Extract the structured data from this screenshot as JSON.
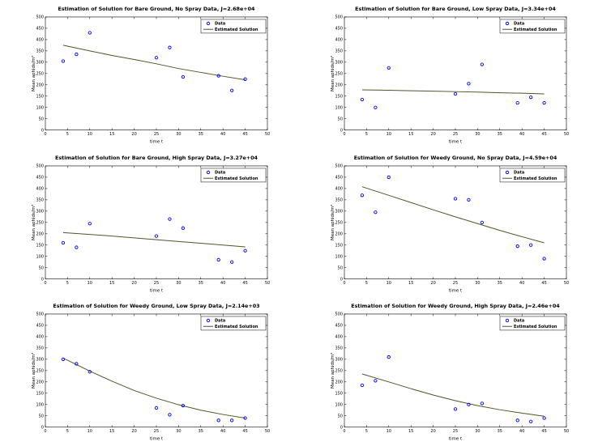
{
  "figure": {
    "background": "#ffffff"
  },
  "axes": {
    "xlabel": "time t",
    "ylabel": "Mean aphids/m³",
    "xlim": [
      0,
      50
    ],
    "ylim": [
      0,
      500
    ],
    "xticks": [
      0,
      5,
      10,
      15,
      20,
      25,
      30,
      35,
      40,
      45,
      50
    ],
    "yticks": [
      0,
      50,
      100,
      150,
      200,
      250,
      300,
      350,
      400,
      450,
      500
    ],
    "grid": false,
    "box": true,
    "legend": {
      "position": "upper-right",
      "entries": [
        {
          "label": "Data",
          "marker": "circle"
        },
        {
          "label": "Estimated Solution",
          "marker": "line"
        }
      ]
    }
  },
  "style": {
    "marker_color": "#0000ff",
    "line_color": "#4d5726",
    "axis_color": "#000000",
    "title_color": "#000000",
    "legend_bg": "#ffffff"
  },
  "chart_data": [
    {
      "type": "scatter",
      "title": "Estimation of Solution for Bare Ground, No Spray Data, J=2.68e+04",
      "ground": "Bare Ground",
      "spray": "No Spray",
      "J": "2.68e+04",
      "xlabel": "time t",
      "ylabel": "Mean aphids/m³",
      "points": {
        "x": [
          4,
          7,
          10,
          25,
          28,
          31,
          39,
          42,
          45
        ],
        "y": [
          305,
          335,
          430,
          320,
          365,
          235,
          240,
          175,
          225
        ]
      },
      "estimated_solution": {
        "x": [
          4,
          10,
          15,
          20,
          25,
          30,
          35,
          40,
          45
        ],
        "y": [
          375,
          350,
          330,
          312,
          293,
          272,
          255,
          238,
          222
        ]
      }
    },
    {
      "type": "scatter",
      "title": "Estimation of Solution for Bare Ground, Low Spray Data, J=3.34e+04",
      "ground": "Bare Ground",
      "spray": "Low Spray",
      "J": "3.34e+04",
      "xlabel": "time t",
      "ylabel": "Mean aphids/m³",
      "points": {
        "x": [
          4,
          7,
          10,
          25,
          28,
          31,
          39,
          42,
          45
        ],
        "y": [
          135,
          100,
          275,
          160,
          205,
          290,
          120,
          145,
          120
        ]
      },
      "estimated_solution": {
        "x": [
          4,
          10,
          15,
          20,
          25,
          30,
          35,
          40,
          45
        ],
        "y": [
          178,
          176,
          174,
          172,
          170,
          168,
          165,
          163,
          160
        ]
      }
    },
    {
      "type": "scatter",
      "title": "Estimation of Solution for Bare Ground, High Spray Data, J=3.27e+04",
      "ground": "Bare Ground",
      "spray": "High Spray",
      "J": "3.27e+04",
      "xlabel": "time t",
      "ylabel": "Mean aphids/m³",
      "points": {
        "x": [
          4,
          7,
          10,
          25,
          28,
          31,
          39,
          42,
          45
        ],
        "y": [
          160,
          140,
          245,
          190,
          265,
          225,
          85,
          75,
          125
        ]
      },
      "estimated_solution": {
        "x": [
          4,
          10,
          15,
          20,
          25,
          30,
          35,
          40,
          45
        ],
        "y": [
          205,
          197,
          190,
          182,
          174,
          166,
          158,
          150,
          142
        ]
      }
    },
    {
      "type": "scatter",
      "title": "Estimation of Solution for Weedy Ground, No Spray Data, J=4.59e+04",
      "ground": "Weedy Ground",
      "spray": "No Spray",
      "J": "4.59e+04",
      "xlabel": "time t",
      "ylabel": "Mean aphids/m³",
      "points": {
        "x": [
          4,
          7,
          10,
          25,
          28,
          31,
          39,
          42,
          45
        ],
        "y": [
          370,
          295,
          450,
          355,
          350,
          250,
          145,
          150,
          90
        ]
      },
      "estimated_solution": {
        "x": [
          4,
          10,
          15,
          20,
          25,
          30,
          35,
          40,
          45
        ],
        "y": [
          408,
          370,
          338,
          306,
          275,
          245,
          215,
          187,
          160
        ]
      }
    },
    {
      "type": "scatter",
      "title": "Estimation of Solution for Weedy Ground, Low Spray Data, J=2.14e+03",
      "ground": "Weedy Ground",
      "spray": "Low Spray",
      "J": "2.14e+03",
      "xlabel": "time t",
      "ylabel": "Mean aphids/m³",
      "points": {
        "x": [
          4,
          7,
          10,
          25,
          28,
          31,
          39,
          42,
          45
        ],
        "y": [
          300,
          280,
          245,
          85,
          55,
          95,
          30,
          30,
          40
        ]
      },
      "estimated_solution": {
        "x": [
          4,
          10,
          15,
          20,
          25,
          30,
          35,
          40,
          45
        ],
        "y": [
          305,
          248,
          203,
          162,
          128,
          99,
          75,
          56,
          40
        ]
      }
    },
    {
      "type": "scatter",
      "title": "Estimation of Solution for Weedy Ground, High Spray Data, J=2.46e+04",
      "ground": "Weedy Ground",
      "spray": "High Spray",
      "J": "2.46e+04",
      "xlabel": "time t",
      "ylabel": "Mean aphids/m³",
      "points": {
        "x": [
          4,
          7,
          10,
          25,
          28,
          31,
          39,
          42,
          45
        ],
        "y": [
          185,
          205,
          310,
          80,
          100,
          105,
          30,
          25,
          40
        ]
      },
      "estimated_solution": {
        "x": [
          4,
          10,
          15,
          20,
          25,
          30,
          35,
          40,
          45
        ],
        "y": [
          235,
          200,
          170,
          142,
          117,
          95,
          77,
          62,
          48
        ]
      }
    }
  ]
}
